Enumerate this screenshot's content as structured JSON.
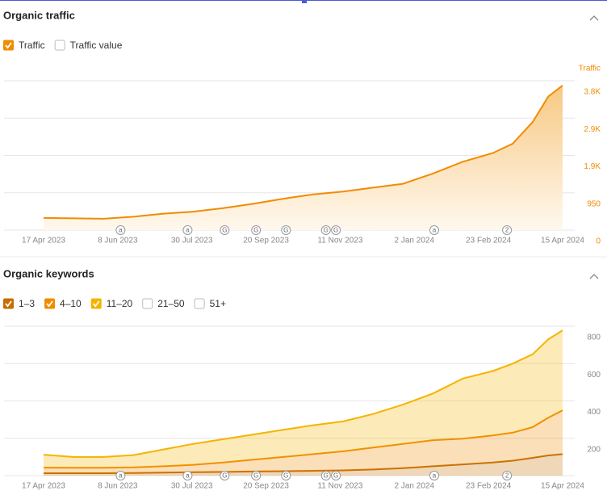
{
  "chart_data": [
    {
      "type": "area",
      "title": "Organic traffic",
      "y_axis_label": "Traffic",
      "x": [
        "2023-04-17",
        "2023-05-08",
        "2023-05-29",
        "2023-06-19",
        "2023-07-10",
        "2023-07-31",
        "2023-08-21",
        "2023-09-11",
        "2023-10-02",
        "2023-10-23",
        "2023-11-13",
        "2023-12-04",
        "2023-12-25",
        "2024-01-15",
        "2024-02-05",
        "2024-02-26",
        "2024-03-11",
        "2024-03-25",
        "2024-04-05",
        "2024-04-15"
      ],
      "series": [
        {
          "name": "Traffic",
          "color": "#f08c00",
          "values": [
            310,
            300,
            290,
            340,
            420,
            470,
            560,
            670,
            800,
            910,
            980,
            1080,
            1180,
            1440,
            1740,
            1960,
            2200,
            2750,
            3400,
            3680
          ]
        }
      ],
      "unselected_legend": [
        "Traffic value"
      ],
      "xlim": [
        "2023-04-17",
        "2024-04-15"
      ],
      "xticks": [
        {
          "value": "2023-04-17",
          "label": "17 Apr 2023"
        },
        {
          "value": "2023-06-08",
          "label": "8 Jun 2023"
        },
        {
          "value": "2023-07-30",
          "label": "30 Jul 2023"
        },
        {
          "value": "2023-09-20",
          "label": "20 Sep 2023"
        },
        {
          "value": "2023-11-11",
          "label": "11 Nov 2023"
        },
        {
          "value": "2024-01-02",
          "label": "2 Jan 2024"
        },
        {
          "value": "2024-02-23",
          "label": "23 Feb 2024"
        },
        {
          "value": "2024-04-15",
          "label": "15 Apr 2024"
        }
      ],
      "ylim": [
        0,
        3800
      ],
      "yticks": [
        0,
        950,
        {
          "value": 1900,
          "label": "1.9K"
        },
        {
          "value": 2850,
          "label": "2.9K"
        },
        {
          "value": 3800,
          "label": "3.8K"
        }
      ],
      "grid": true,
      "stacked": false,
      "annotations": [
        {
          "x": "2023-06-10",
          "label": "a"
        },
        {
          "x": "2023-07-27",
          "label": "a"
        },
        {
          "x": "2023-08-22",
          "label": "G"
        },
        {
          "x": "2023-09-13",
          "label": "G"
        },
        {
          "x": "2023-10-04",
          "label": "G"
        },
        {
          "x": "2023-11-01",
          "label": "G"
        },
        {
          "x": "2023-11-08",
          "label": "G"
        },
        {
          "x": "2024-01-16",
          "label": "a"
        },
        {
          "x": "2024-03-07",
          "label": "2"
        }
      ]
    },
    {
      "type": "area",
      "title": "Organic keywords",
      "x": [
        "2023-04-17",
        "2023-05-08",
        "2023-05-29",
        "2023-06-19",
        "2023-07-10",
        "2023-07-31",
        "2023-08-21",
        "2023-09-11",
        "2023-10-02",
        "2023-10-23",
        "2023-11-13",
        "2023-12-04",
        "2023-12-25",
        "2024-01-15",
        "2024-02-05",
        "2024-02-26",
        "2024-03-11",
        "2024-03-25",
        "2024-04-05",
        "2024-04-15"
      ],
      "series": [
        {
          "name": "1–3",
          "color": "#c66e00",
          "values": [
            13,
            13,
            13,
            14,
            16,
            18,
            20,
            22,
            24,
            26,
            28,
            33,
            40,
            50,
            60,
            70,
            80,
            95,
            108,
            115
          ]
        },
        {
          "name": "4–10",
          "color": "#f08c00",
          "values": [
            30,
            29,
            29,
            30,
            34,
            40,
            50,
            63,
            76,
            89,
            102,
            117,
            130,
            140,
            138,
            145,
            150,
            165,
            202,
            235
          ]
        },
        {
          "name": "11–20",
          "color": "#f5b400",
          "values": [
            69,
            58,
            58,
            66,
            90,
            112,
            125,
            135,
            145,
            155,
            160,
            180,
            210,
            250,
            322,
            345,
            370,
            390,
            420,
            428
          ]
        }
      ],
      "unselected_legend": [
        "21–50",
        "51+"
      ],
      "xlim": [
        "2023-04-17",
        "2024-04-15"
      ],
      "xticks": [
        {
          "value": "2023-04-17",
          "label": "17 Apr 2023"
        },
        {
          "value": "2023-06-08",
          "label": "8 Jun 2023"
        },
        {
          "value": "2023-07-30",
          "label": "30 Jul 2023"
        },
        {
          "value": "2023-09-20",
          "label": "20 Sep 2023"
        },
        {
          "value": "2023-11-11",
          "label": "11 Nov 2023"
        },
        {
          "value": "2024-01-02",
          "label": "2 Jan 2024"
        },
        {
          "value": "2024-02-23",
          "label": "23 Feb 2024"
        },
        {
          "value": "2024-04-15",
          "label": "15 Apr 2024"
        }
      ],
      "ylim": [
        0,
        800
      ],
      "yticks": [
        200,
        400,
        600,
        800
      ],
      "grid": true,
      "stacked": true,
      "annotations": [
        {
          "x": "2023-06-10",
          "label": "a"
        },
        {
          "x": "2023-07-27",
          "label": "a"
        },
        {
          "x": "2023-08-22",
          "label": "G"
        },
        {
          "x": "2023-09-13",
          "label": "G"
        },
        {
          "x": "2023-10-04",
          "label": "G"
        },
        {
          "x": "2023-11-01",
          "label": "G"
        },
        {
          "x": "2023-11-08",
          "label": "G"
        },
        {
          "x": "2024-01-16",
          "label": "a"
        },
        {
          "x": "2024-03-07",
          "label": "2"
        }
      ]
    }
  ]
}
